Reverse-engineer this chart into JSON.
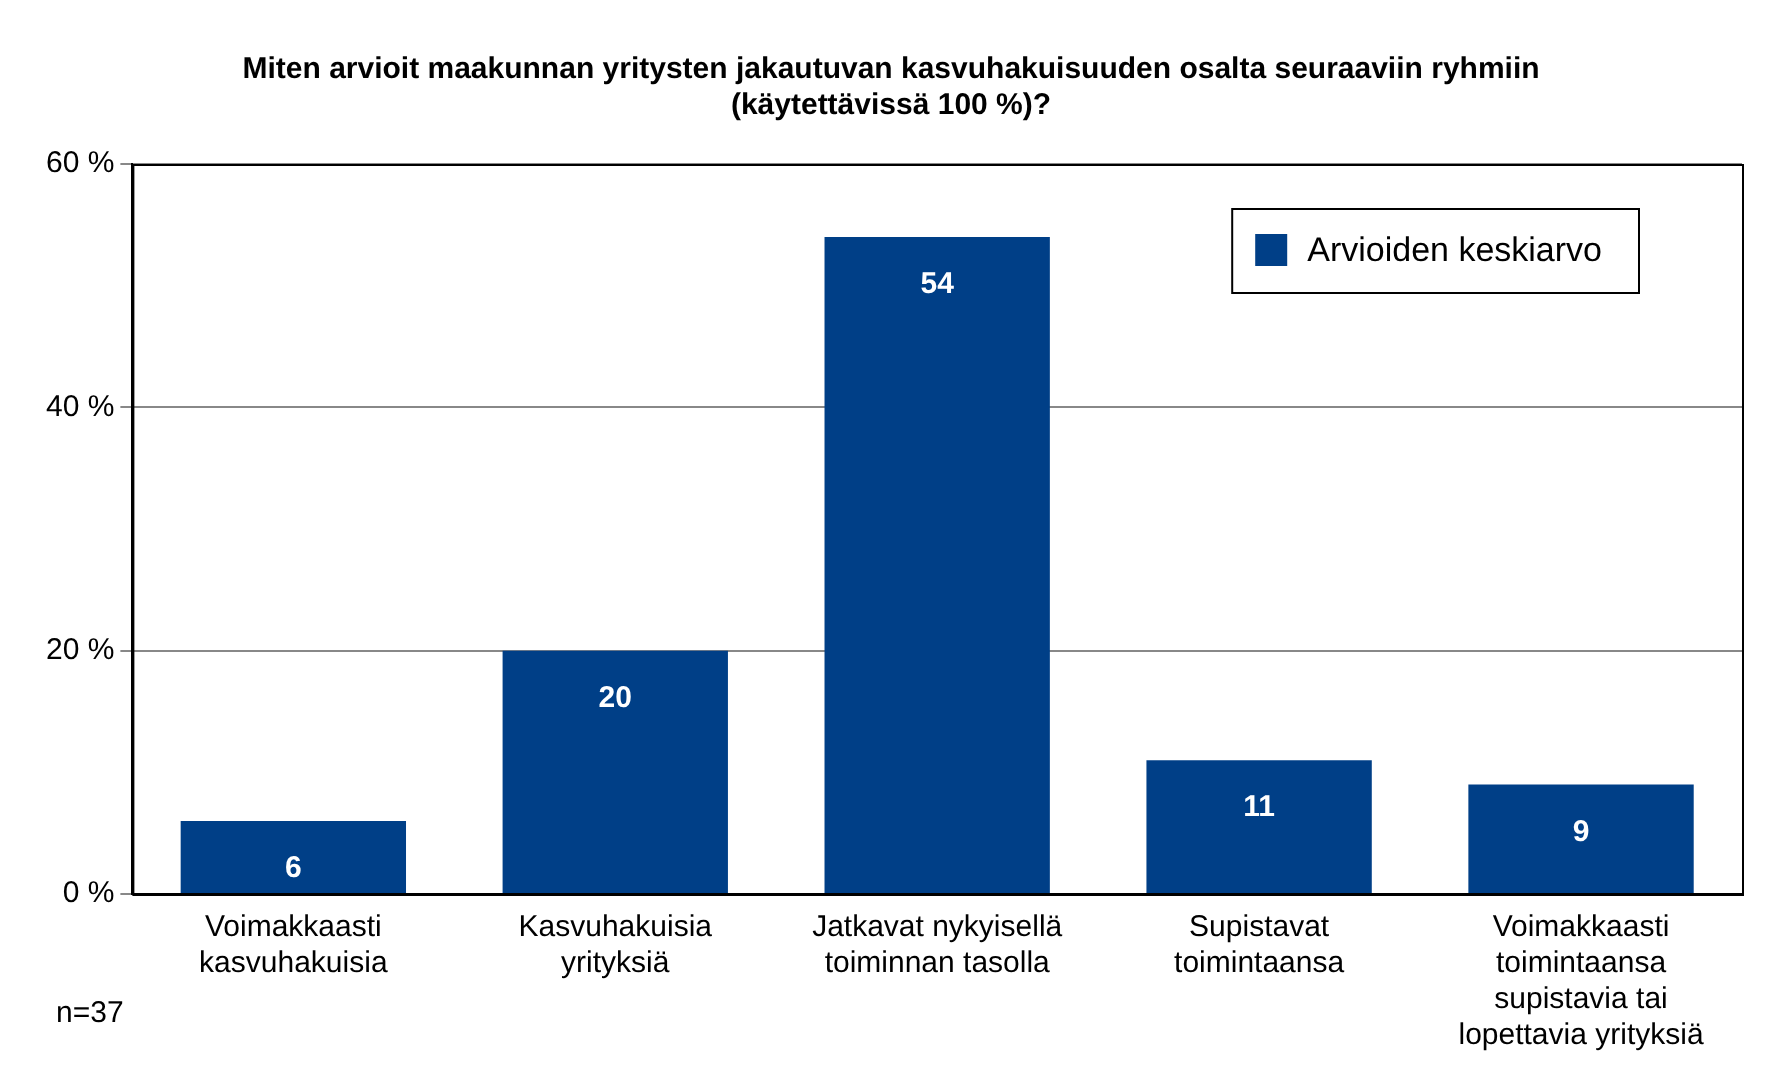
{
  "chart_data": {
    "type": "bar",
    "title": "Miten arvioit maakunnan yritysten jakautuvan kasvuhakuisuuden osalta seuraaviin ryhmiin (käytettävissä 100 %)?",
    "categories": [
      "Voimakkaasti kasvuhakuisia",
      "Kasvuhakuisia yrityksiä",
      "Jatkavat nykyisellä toiminnan tasolla",
      "Supistavat toimintaansa",
      "Voimakkaasti toimintaansa supistavia tai lopettavia yrityksiä"
    ],
    "series": [
      {
        "name": "Arvioiden keskiarvo",
        "color": "#003f87",
        "values": [
          6,
          20,
          54,
          11,
          9
        ]
      }
    ],
    "ylim": [
      0,
      60
    ],
    "yticks": [
      {
        "value": 0,
        "label": "0 %"
      },
      {
        "value": 20,
        "label": "20 %"
      },
      {
        "value": 40,
        "label": "40 %"
      },
      {
        "value": 60,
        "label": "60 %"
      }
    ],
    "grid": "y",
    "legend": "top right",
    "data_labels": true,
    "annotations": [
      "n=37"
    ]
  }
}
